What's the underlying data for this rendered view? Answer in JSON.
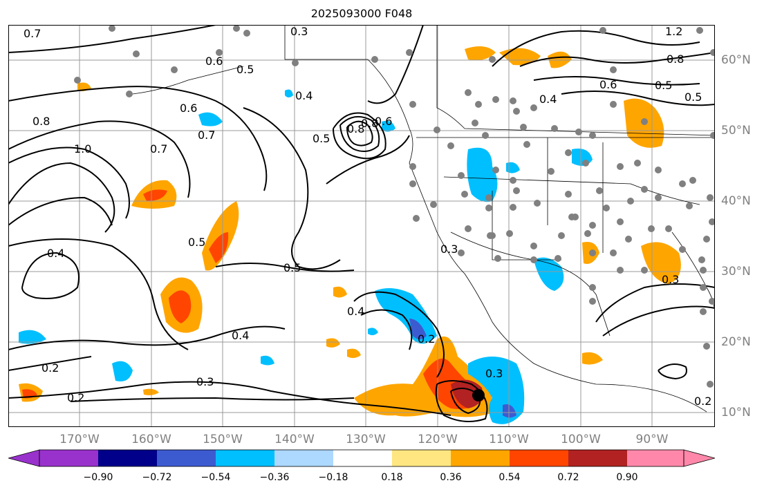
{
  "title": "2025093000 F048",
  "map": {
    "projection": "cylindrical",
    "lon_range": [
      -180,
      -81.5
    ],
    "lat_range": [
      7.5,
      65
    ],
    "lon_labels": [
      "170°W",
      "160°W",
      "150°W",
      "140°W",
      "130°W",
      "120°W",
      "110°W",
      "100°W",
      "90°W"
    ],
    "lat_labels": [
      "60°N",
      "50°N",
      "40°N",
      "30°N",
      "20°N",
      "10°N"
    ],
    "contour_labels": [
      "0.7",
      "0.3",
      "0.8",
      "0.6",
      "1.0",
      "0.7",
      "0.5",
      "0.6",
      "0.8",
      "0.4",
      "0.5",
      "0.7",
      "0.4",
      "0.5",
      "0.8",
      "0.6",
      "0.5",
      "0.4",
      "0.4",
      "0.2",
      "0.3",
      "0.2",
      "0.3",
      "0.2",
      "0.3",
      "1.2",
      "0.8",
      "0.6",
      "0.5",
      "0.5",
      "0.4",
      "0.3",
      "0.2"
    ],
    "fill_colors": {
      "positive_light": "#ffe680",
      "positive_orange": "#ffa500",
      "positive_red": "#ff4500",
      "positive_dark": "#b22222",
      "negative_light": "#add8ff",
      "negative_cyan": "#00bfff",
      "negative_blue": "#3d5bd1"
    },
    "marker": "storm-center-dot"
  },
  "colorbar": {
    "ticks": [
      "−0.90",
      "−0.72",
      "−0.54",
      "−0.36",
      "−0.18",
      "0.18",
      "0.36",
      "0.54",
      "0.72",
      "0.90"
    ],
    "colors": [
      "#9932cc",
      "#00008b",
      "#3d5bd1",
      "#00bfff",
      "#add8ff",
      "#ffffff",
      "#ffe680",
      "#ffa500",
      "#ff4500",
      "#b22222",
      "#ff88aa"
    ]
  }
}
